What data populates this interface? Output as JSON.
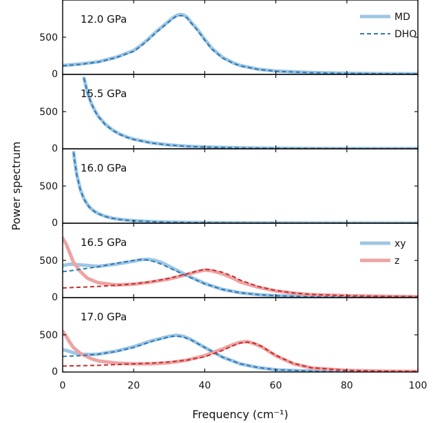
{
  "chart_data": {
    "type": "line",
    "xlabel": "Frequency (cm⁻¹)",
    "ylabel": "Power spectrum",
    "xlim": [
      0,
      100
    ],
    "xticks": [
      0,
      20,
      40,
      60,
      80,
      100
    ],
    "yticks": [
      0,
      500
    ],
    "grid": false,
    "colors": {
      "md_xy": "#9ec6e3",
      "dho_xy": "#2a78b6",
      "md_z": "#eda3a3",
      "dho_z": "#c82a2a"
    },
    "legend_top": {
      "placement": "top-right",
      "entries": [
        {
          "label": "MD",
          "style": "solid-thick",
          "color": "#9ec6e3"
        },
        {
          "label": "DHO",
          "style": "dashed",
          "color": "#2a78b6"
        }
      ]
    },
    "legend_bottom": {
      "placement": "top-right",
      "entries": [
        {
          "label": "xy",
          "style": "solid-thick",
          "color": "#9ec6e3"
        },
        {
          "label": "z",
          "style": "solid-thick",
          "color": "#eda3a3"
        }
      ]
    },
    "panels": [
      {
        "label": "12.0 GPa",
        "ylim": [
          0,
          1000
        ],
        "series": [
          {
            "kind": "MD",
            "component": "xy",
            "x": [
              0,
              5,
              10,
              15,
              20,
              22,
              24,
              26,
              28,
              30,
              31,
              32,
              33,
              34,
              35,
              36,
              38,
              40,
              42,
              45,
              48,
              50,
              55,
              60,
              70,
              80,
              90,
              100
            ],
            "y": [
              120,
              140,
              170,
              230,
              320,
              390,
              470,
              560,
              640,
              720,
              760,
              790,
              805,
              800,
              770,
              710,
              600,
              470,
              350,
              230,
              155,
              120,
              70,
              45,
              25,
              15,
              10,
              8
            ]
          },
          {
            "kind": "DHO",
            "component": "xy",
            "x": [
              0,
              5,
              10,
              15,
              20,
              22,
              24,
              26,
              28,
              30,
              31,
              32,
              33,
              34,
              35,
              36,
              38,
              40,
              42,
              45,
              48,
              50,
              55,
              60,
              70,
              80,
              90,
              100
            ],
            "y": [
              115,
              135,
              165,
              225,
              310,
              380,
              460,
              550,
              630,
              710,
              750,
              780,
              790,
              785,
              760,
              700,
              590,
              460,
              340,
              220,
              150,
              115,
              68,
              42,
              22,
              13,
              9,
              6
            ]
          }
        ]
      },
      {
        "label": "15.5 GPa",
        "ylim": [
          0,
          1000
        ],
        "series": [
          {
            "kind": "MD",
            "component": "xy",
            "x": [
              6,
              7,
              8,
              9,
              10,
              12,
              14,
              16,
              18,
              20,
              25,
              30,
              35,
              40,
              50,
              60,
              70,
              80,
              100
            ],
            "y": [
              950,
              760,
              620,
              520,
              440,
              330,
              255,
              200,
              160,
              130,
              80,
              52,
              35,
              24,
              13,
              8,
              5,
              4,
              3
            ]
          },
          {
            "kind": "DHO",
            "component": "xy",
            "x": [
              6,
              7,
              8,
              9,
              10,
              12,
              14,
              16,
              18,
              20,
              25,
              30,
              35,
              40,
              50,
              60,
              70,
              80,
              100
            ],
            "y": [
              950,
              755,
              615,
              515,
              435,
              325,
              250,
              195,
              155,
              125,
              77,
              50,
              33,
              23,
              12,
              7,
              5,
              3,
              2
            ]
          }
        ]
      },
      {
        "label": "16.0 GPa",
        "ylim": [
          0,
          1000
        ],
        "series": [
          {
            "kind": "MD",
            "component": "xy",
            "x": [
              3.1,
              3.5,
              4,
              5,
              6,
              7,
              8,
              9,
              10,
              12,
              14,
              16,
              18,
              20,
              25,
              30,
              40,
              50,
              60,
              80,
              100
            ],
            "y": [
              950,
              800,
              650,
              450,
              330,
              250,
              195,
              160,
              130,
              92,
              68,
              52,
              42,
              34,
              21,
              14,
              8,
              5,
              3,
              2,
              1
            ]
          },
          {
            "kind": "DHO",
            "component": "xy",
            "x": [
              3.1,
              3.5,
              4,
              5,
              6,
              7,
              8,
              9,
              10,
              12,
              14,
              16,
              18,
              20,
              25,
              30,
              40,
              50,
              60,
              80,
              100
            ],
            "y": [
              950,
              795,
              645,
              445,
              325,
              245,
              190,
              155,
              127,
              90,
              66,
              50,
              40,
              32,
              20,
              13,
              7,
              4,
              3,
              2,
              1
            ]
          }
        ]
      },
      {
        "label": "16.5 GPa",
        "ylim": [
          0,
          1000
        ],
        "series": [
          {
            "kind": "MD",
            "component": "xy",
            "x": [
              0,
              2,
              5,
              10,
              15,
              20,
              22,
              24,
              26,
              28,
              30,
              35,
              40,
              45,
              50,
              55,
              60,
              70,
              80,
              90,
              100
            ],
            "y": [
              430,
              450,
              440,
              420,
              450,
              490,
              510,
              515,
              500,
              470,
              420,
              300,
              190,
              110,
              65,
              40,
              25,
              12,
              7,
              5,
              4
            ]
          },
          {
            "kind": "DHO",
            "component": "xy",
            "x": [
              0,
              2,
              5,
              10,
              15,
              20,
              22,
              24,
              26,
              28,
              30,
              35,
              40,
              45,
              50,
              55,
              60,
              70,
              80,
              90,
              100
            ],
            "y": [
              350,
              360,
              380,
              415,
              460,
              500,
              510,
              505,
              480,
              445,
              400,
              290,
              185,
              110,
              65,
              40,
              25,
              12,
              7,
              5,
              4
            ]
          },
          {
            "kind": "MD",
            "component": "z",
            "x": [
              0,
              1,
              2,
              3,
              5,
              7,
              10,
              15,
              20,
              25,
              30,
              35,
              38,
              40,
              42,
              45,
              48,
              50,
              55,
              60,
              65,
              70,
              80,
              90,
              100
            ],
            "y": [
              800,
              720,
              600,
              480,
              350,
              260,
              200,
              170,
              180,
              210,
              250,
              310,
              350,
              370,
              360,
              320,
              260,
              210,
              140,
              90,
              60,
              40,
              25,
              18,
              12
            ]
          },
          {
            "kind": "DHO",
            "component": "z",
            "x": [
              0,
              5,
              10,
              15,
              20,
              25,
              30,
              35,
              38,
              40,
              42,
              45,
              48,
              50,
              55,
              60,
              65,
              70,
              80,
              90,
              100
            ],
            "y": [
              130,
              140,
              150,
              165,
              185,
              215,
              260,
              320,
              360,
              380,
              375,
              340,
              285,
              235,
              150,
              95,
              62,
              42,
              25,
              17,
              12
            ]
          }
        ]
      },
      {
        "label": "17.0 GPa",
        "ylim": [
          0,
          1000
        ],
        "series": [
          {
            "kind": "MD",
            "component": "xy",
            "x": [
              0,
              1,
              3,
              5,
              8,
              10,
              15,
              20,
              25,
              30,
              32,
              34,
              36,
              40,
              45,
              50,
              55,
              60,
              70,
              80,
              100
            ],
            "y": [
              300,
              290,
              260,
              240,
              235,
              240,
              280,
              340,
              420,
              480,
              495,
              480,
              440,
              330,
              200,
              110,
              60,
              30,
              12,
              6,
              3
            ]
          },
          {
            "kind": "DHO",
            "component": "xy",
            "x": [
              0,
              5,
              10,
              15,
              20,
              25,
              30,
              32,
              34,
              36,
              40,
              45,
              50,
              55,
              60,
              70,
              80,
              100
            ],
            "y": [
              210,
              220,
              240,
              275,
              330,
              410,
              475,
              485,
              470,
              435,
              330,
              200,
              110,
              60,
              30,
              12,
              6,
              3
            ]
          },
          {
            "kind": "MD",
            "component": "z",
            "x": [
              0,
              1,
              2,
              3,
              5,
              8,
              10,
              15,
              20,
              25,
              30,
              35,
              40,
              45,
              48,
              50,
              52,
              54,
              56,
              60,
              65,
              70,
              80,
              90,
              100
            ],
            "y": [
              550,
              480,
              400,
              330,
              250,
              180,
              150,
              120,
              110,
              110,
              125,
              160,
              220,
              310,
              370,
              400,
              410,
              380,
              340,
              220,
              110,
              55,
              22,
              12,
              8
            ]
          },
          {
            "kind": "DHO",
            "component": "z",
            "x": [
              0,
              5,
              10,
              15,
              20,
              25,
              30,
              35,
              40,
              45,
              48,
              50,
              52,
              54,
              56,
              60,
              65,
              70,
              80,
              90,
              100
            ],
            "y": [
              80,
              85,
              90,
              100,
              110,
              120,
              135,
              160,
              205,
              290,
              355,
              390,
              400,
              385,
              345,
              225,
              115,
              58,
              22,
              12,
              8
            ]
          }
        ]
      }
    ]
  }
}
